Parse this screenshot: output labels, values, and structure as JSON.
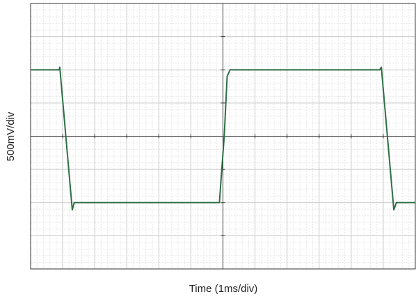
{
  "chart_data": {
    "type": "line",
    "xlabel": "Time (1ms/div)",
    "ylabel": "500mV/div",
    "x": [
      0,
      0.89,
      0.91,
      1.3,
      1.36,
      5.89,
      5.93,
      6.04,
      6.13,
      6.22,
      10.89,
      10.94,
      11.33,
      11.41,
      12
    ],
    "series": [
      {
        "color": "#2f6f46",
        "values": [
          1,
          1,
          1.04,
          -1.11,
          -1,
          -1,
          -0.72,
          0,
          0.9,
          1,
          1,
          1.04,
          -1.11,
          -1,
          -1
        ]
      }
    ],
    "xlim": [
      0,
      12
    ],
    "ylim": [
      -2,
      2
    ],
    "xticks": [
      0,
      1,
      2,
      3,
      4,
      5,
      6,
      7,
      8,
      9,
      10,
      11,
      12
    ],
    "yticks": [
      -2,
      -1.5,
      -1,
      -0.5,
      0,
      0.5,
      1,
      1.5,
      2
    ],
    "grid": true
  }
}
